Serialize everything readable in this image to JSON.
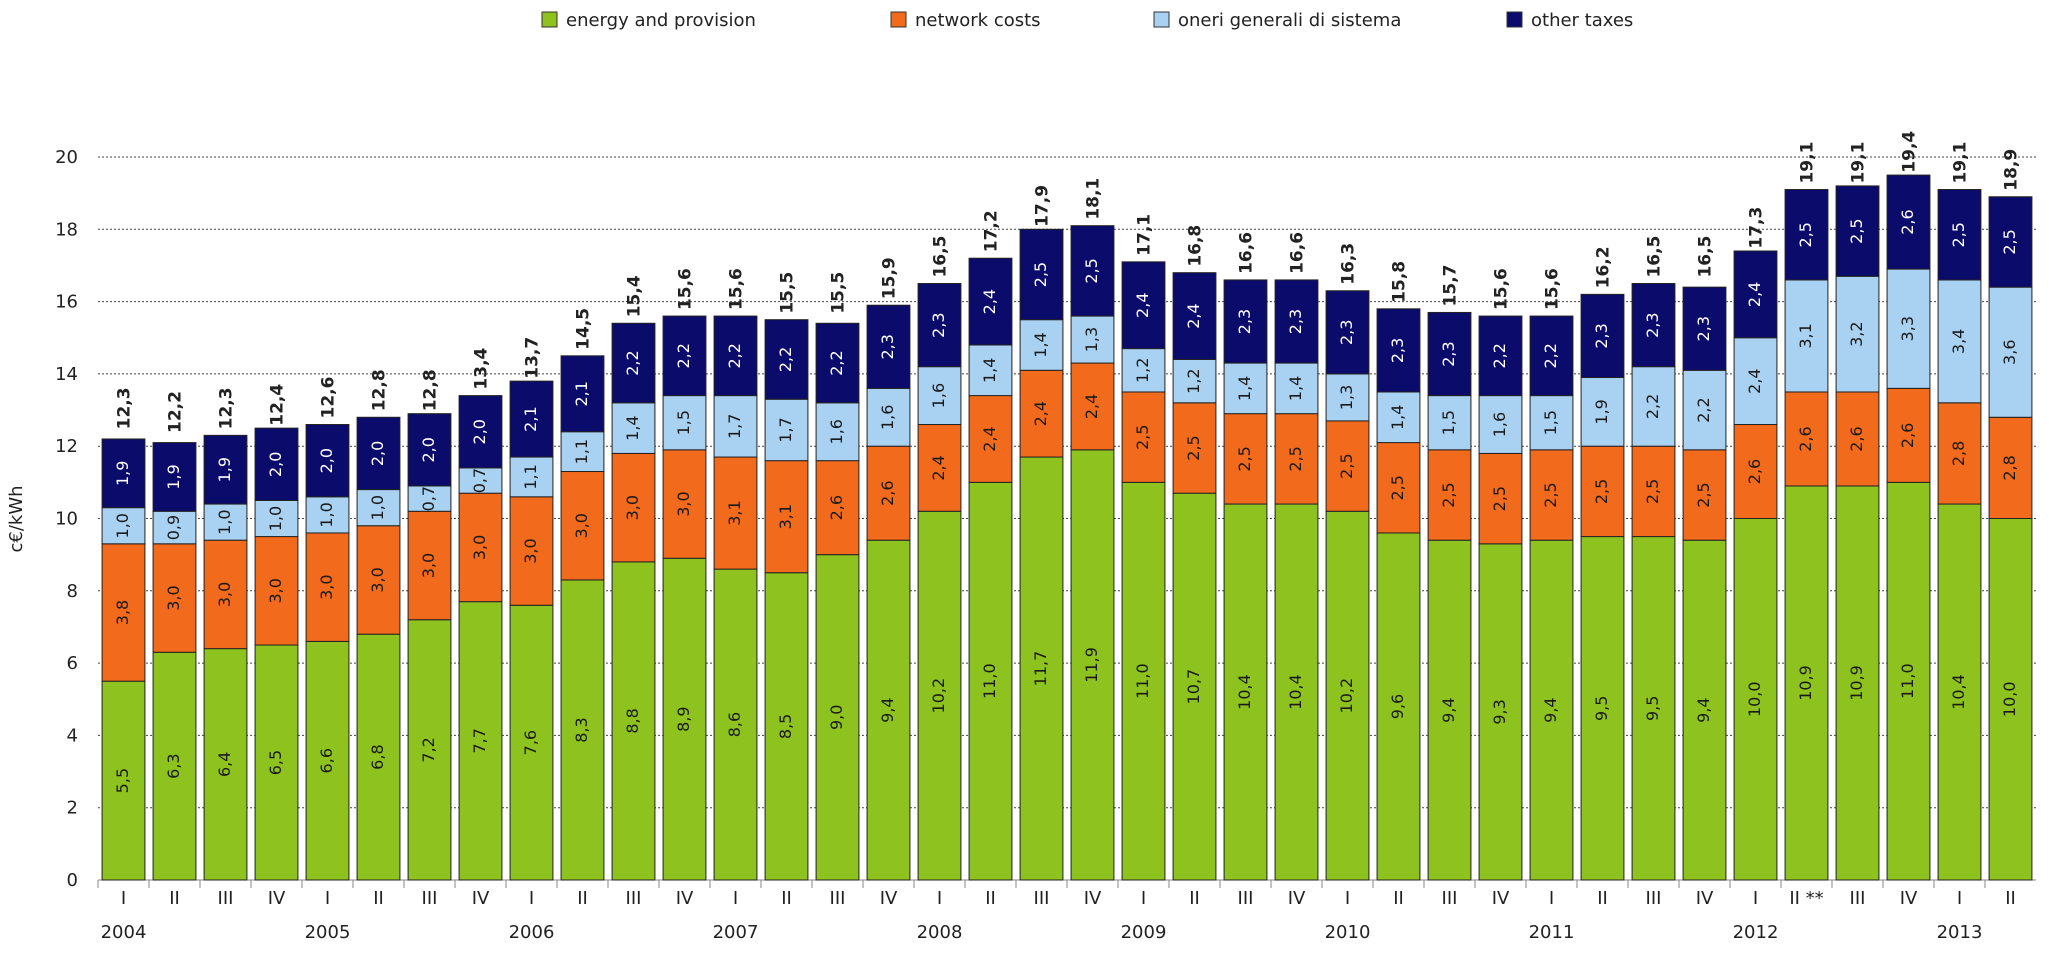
{
  "chart_data": {
    "type": "stacked_bar",
    "y_label": "c€/kWh",
    "ylim": [
      0,
      20
    ],
    "yticks": [
      0,
      2,
      4,
      6,
      8,
      10,
      12,
      14,
      16,
      18,
      20
    ],
    "grid": true,
    "legend": "top",
    "categories": [
      "I",
      "II",
      "III",
      "IV",
      "I",
      "II",
      "III",
      "IV",
      "I",
      "II",
      "III",
      "IV",
      "I",
      "II",
      "III",
      "IV",
      "I",
      "II",
      "III",
      "IV",
      "I",
      "II",
      "III",
      "IV",
      "I",
      "II",
      "III",
      "IV",
      "I",
      "II",
      "III",
      "IV",
      "I",
      "II **",
      "III",
      "IV",
      "I",
      "II"
    ],
    "year_labels": [
      "2004",
      null,
      null,
      null,
      "2005",
      null,
      null,
      null,
      "2006",
      null,
      null,
      null,
      "2007",
      null,
      null,
      null,
      "2008",
      null,
      null,
      null,
      "2009",
      null,
      null,
      null,
      "2010",
      null,
      null,
      null,
      "2011",
      null,
      null,
      null,
      "2012",
      null,
      null,
      null,
      "2013",
      null
    ],
    "series": [
      {
        "name": "energy and provision",
        "color": "#8dc21f",
        "label_color": "#1a1a1a",
        "values": [
          5.5,
          6.3,
          6.4,
          6.5,
          6.6,
          6.8,
          7.2,
          7.7,
          7.6,
          8.3,
          8.8,
          8.9,
          8.6,
          8.5,
          9.0,
          9.4,
          10.2,
          11.0,
          11.7,
          11.9,
          11.0,
          10.7,
          10.4,
          10.4,
          10.2,
          9.6,
          9.4,
          9.3,
          9.4,
          9.5,
          9.5,
          9.4,
          10.0,
          10.9,
          10.9,
          11.0,
          10.4,
          10.0
        ],
        "value_labels": [
          "5,5",
          "6,3",
          "6,4",
          "6,5",
          "6,6",
          "6,8",
          "7,2",
          "7,7",
          "7,6",
          "8,3",
          "8,8",
          "8,9",
          "8,6",
          "8,5",
          "9,0",
          "9,4",
          "10,2",
          "11,0",
          "11,7",
          "11,9",
          "11,0",
          "10,7",
          "10,4",
          "10,4",
          "10,2",
          "9,6",
          "9,4",
          "9,3",
          "9,4",
          "9,5",
          "9,5",
          "9,4",
          "10,0",
          "10,9",
          "10,9",
          "11,0",
          "10,4",
          "10,0"
        ]
      },
      {
        "name": "network costs",
        "color": "#f26a1b",
        "label_color": "#1a1a1a",
        "values": [
          3.8,
          3.0,
          3.0,
          3.0,
          3.0,
          3.0,
          3.0,
          3.0,
          3.0,
          3.0,
          3.0,
          3.0,
          3.1,
          3.1,
          2.6,
          2.6,
          2.4,
          2.4,
          2.4,
          2.4,
          2.5,
          2.5,
          2.5,
          2.5,
          2.5,
          2.5,
          2.5,
          2.5,
          2.5,
          2.5,
          2.5,
          2.5,
          2.6,
          2.6,
          2.6,
          2.6,
          2.8,
          2.8
        ],
        "value_labels": [
          "3,8",
          "3,0",
          "3,0",
          "3,0",
          "3,0",
          "3,0",
          "3,0",
          "3,0",
          "3,0",
          "3,0",
          "3,0",
          "3,0",
          "3,1",
          "3,1",
          "2,6",
          "2,6",
          "2,4",
          "2,4",
          "2,4",
          "2,4",
          "2,5",
          "2,5",
          "2,5",
          "2,5",
          "2,5",
          "2,5",
          "2,5",
          "2,5",
          "2,5",
          "2,5",
          "2,5",
          "2,5",
          "2,6",
          "2,6",
          "2,6",
          "2,6",
          "2,8",
          "2,8"
        ]
      },
      {
        "name": "oneri generali di sistema",
        "color": "#a9d1f2",
        "label_color": "#1a1a1a",
        "values": [
          1.0,
          0.9,
          1.0,
          1.0,
          1.0,
          1.0,
          0.7,
          0.7,
          1.1,
          1.1,
          1.4,
          1.5,
          1.7,
          1.7,
          1.6,
          1.6,
          1.6,
          1.4,
          1.4,
          1.3,
          1.2,
          1.2,
          1.4,
          1.4,
          1.3,
          1.4,
          1.5,
          1.6,
          1.5,
          1.9,
          2.2,
          2.2,
          2.4,
          3.1,
          3.2,
          3.3,
          3.4,
          3.6
        ],
        "value_labels": [
          "1,0",
          "0,9",
          "1,0",
          "1,0",
          "1,0",
          "1,0",
          "0,7",
          "0,7",
          "1,1",
          "1,1",
          "1,4",
          "1,5",
          "1,7",
          "1,7",
          "1,6",
          "1,6",
          "1,6",
          "1,4",
          "1,4",
          "1,3",
          "1,2",
          "1,2",
          "1,4",
          "1,4",
          "1,3",
          "1,4",
          "1,5",
          "1,6",
          "1,5",
          "1,9",
          "2,2",
          "2,2",
          "2,4",
          "3,1",
          "3,2",
          "3,3",
          "3,4",
          "3,6"
        ]
      },
      {
        "name": "other taxes",
        "color": "#0b0b6b",
        "label_color": "#ffffff",
        "values": [
          1.9,
          1.9,
          1.9,
          2.0,
          2.0,
          2.0,
          2.0,
          2.0,
          2.1,
          2.1,
          2.2,
          2.2,
          2.2,
          2.2,
          2.2,
          2.3,
          2.3,
          2.4,
          2.5,
          2.5,
          2.4,
          2.4,
          2.3,
          2.3,
          2.3,
          2.3,
          2.3,
          2.2,
          2.2,
          2.3,
          2.3,
          2.3,
          2.4,
          2.5,
          2.5,
          2.6,
          2.5,
          2.5
        ],
        "value_labels": [
          "1,9",
          "1,9",
          "1,9",
          "2,0",
          "2,0",
          "2,0",
          "2,0",
          "2,0",
          "2,1",
          "2,1",
          "2,2",
          "2,2",
          "2,2",
          "2,2",
          "2,2",
          "2,3",
          "2,3",
          "2,4",
          "2,5",
          "2,5",
          "2,4",
          "2,4",
          "2,3",
          "2,3",
          "2,3",
          "2,3",
          "2,3",
          "2,2",
          "2,2",
          "2,3",
          "2,3",
          "2,3",
          "2,4",
          "2,5",
          "2,5",
          "2,6",
          "2,5",
          "2,5"
        ]
      }
    ],
    "totals": [
      12.3,
      12.2,
      12.3,
      12.4,
      12.6,
      12.8,
      12.8,
      13.4,
      13.7,
      14.5,
      15.4,
      15.6,
      15.6,
      15.5,
      15.5,
      15.9,
      16.5,
      17.2,
      17.9,
      18.1,
      17.1,
      16.8,
      16.6,
      16.6,
      16.3,
      15.8,
      15.7,
      15.6,
      15.6,
      16.2,
      16.5,
      16.5,
      17.3,
      19.1,
      19.1,
      19.4,
      19.1,
      18.9
    ],
    "total_labels": [
      "12,3",
      "12,2",
      "12,3",
      "12,4",
      "12,6",
      "12,8",
      "12,8",
      "13,4",
      "13,7",
      "14,5",
      "15,4",
      "15,6",
      "15,6",
      "15,5",
      "15,5",
      "15,9",
      "16,5",
      "17,2",
      "17,9",
      "18,1",
      "17,1",
      "16,8",
      "16,6",
      "16,6",
      "16,3",
      "15,8",
      "15,7",
      "15,6",
      "15,6",
      "16,2",
      "16,5",
      "16,5",
      "17,3",
      "19,1",
      "19,1",
      "19,4",
      "19,1",
      "18,9"
    ]
  }
}
